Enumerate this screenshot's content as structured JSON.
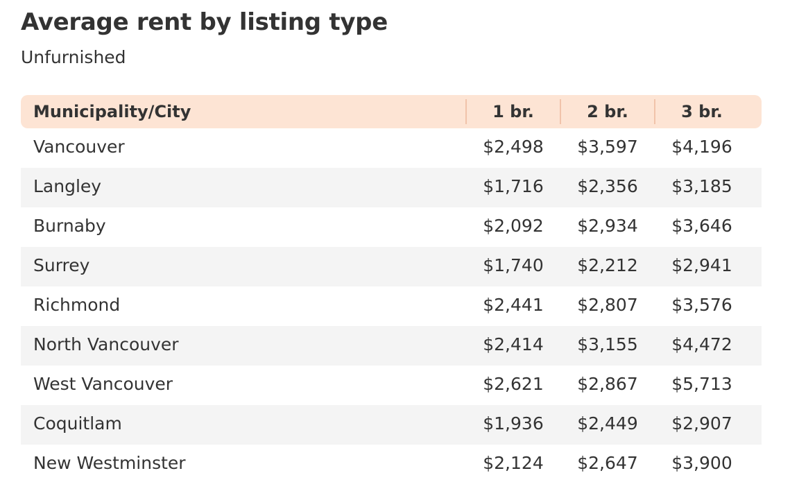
{
  "title": "Average rent by listing type",
  "subtitle": "Unfurnished",
  "chart_data": {
    "type": "table",
    "title": "Average rent by listing type",
    "subtitle": "Unfurnished",
    "columns": [
      "Municipality/City",
      "1 br.",
      "2 br.",
      "3 br."
    ],
    "rows": [
      [
        "Vancouver",
        "$2,498",
        "$3,597",
        "$4,196"
      ],
      [
        "Langley",
        "$1,716",
        "$2,356",
        "$3,185"
      ],
      [
        "Burnaby",
        "$2,092",
        "$2,934",
        "$3,646"
      ],
      [
        "Surrey",
        "$1,740",
        "$2,212",
        "$2,941"
      ],
      [
        "Richmond",
        "$2,441",
        "$2,807",
        "$3,576"
      ],
      [
        "North Vancouver",
        "$2,414",
        "$3,155",
        "$4,472"
      ],
      [
        "West Vancouver",
        "$2,621",
        "$2,867",
        "$5,713"
      ],
      [
        "Coquitlam",
        "$1,936",
        "$2,449",
        "$2,907"
      ],
      [
        "New Westminster",
        "$2,124",
        "$2,647",
        "$3,900"
      ]
    ]
  },
  "colors": {
    "header_background": "#fde4d4",
    "header_divider": "#f1c3aa",
    "stripe": "#f4f4f4",
    "text": "#333333"
  }
}
